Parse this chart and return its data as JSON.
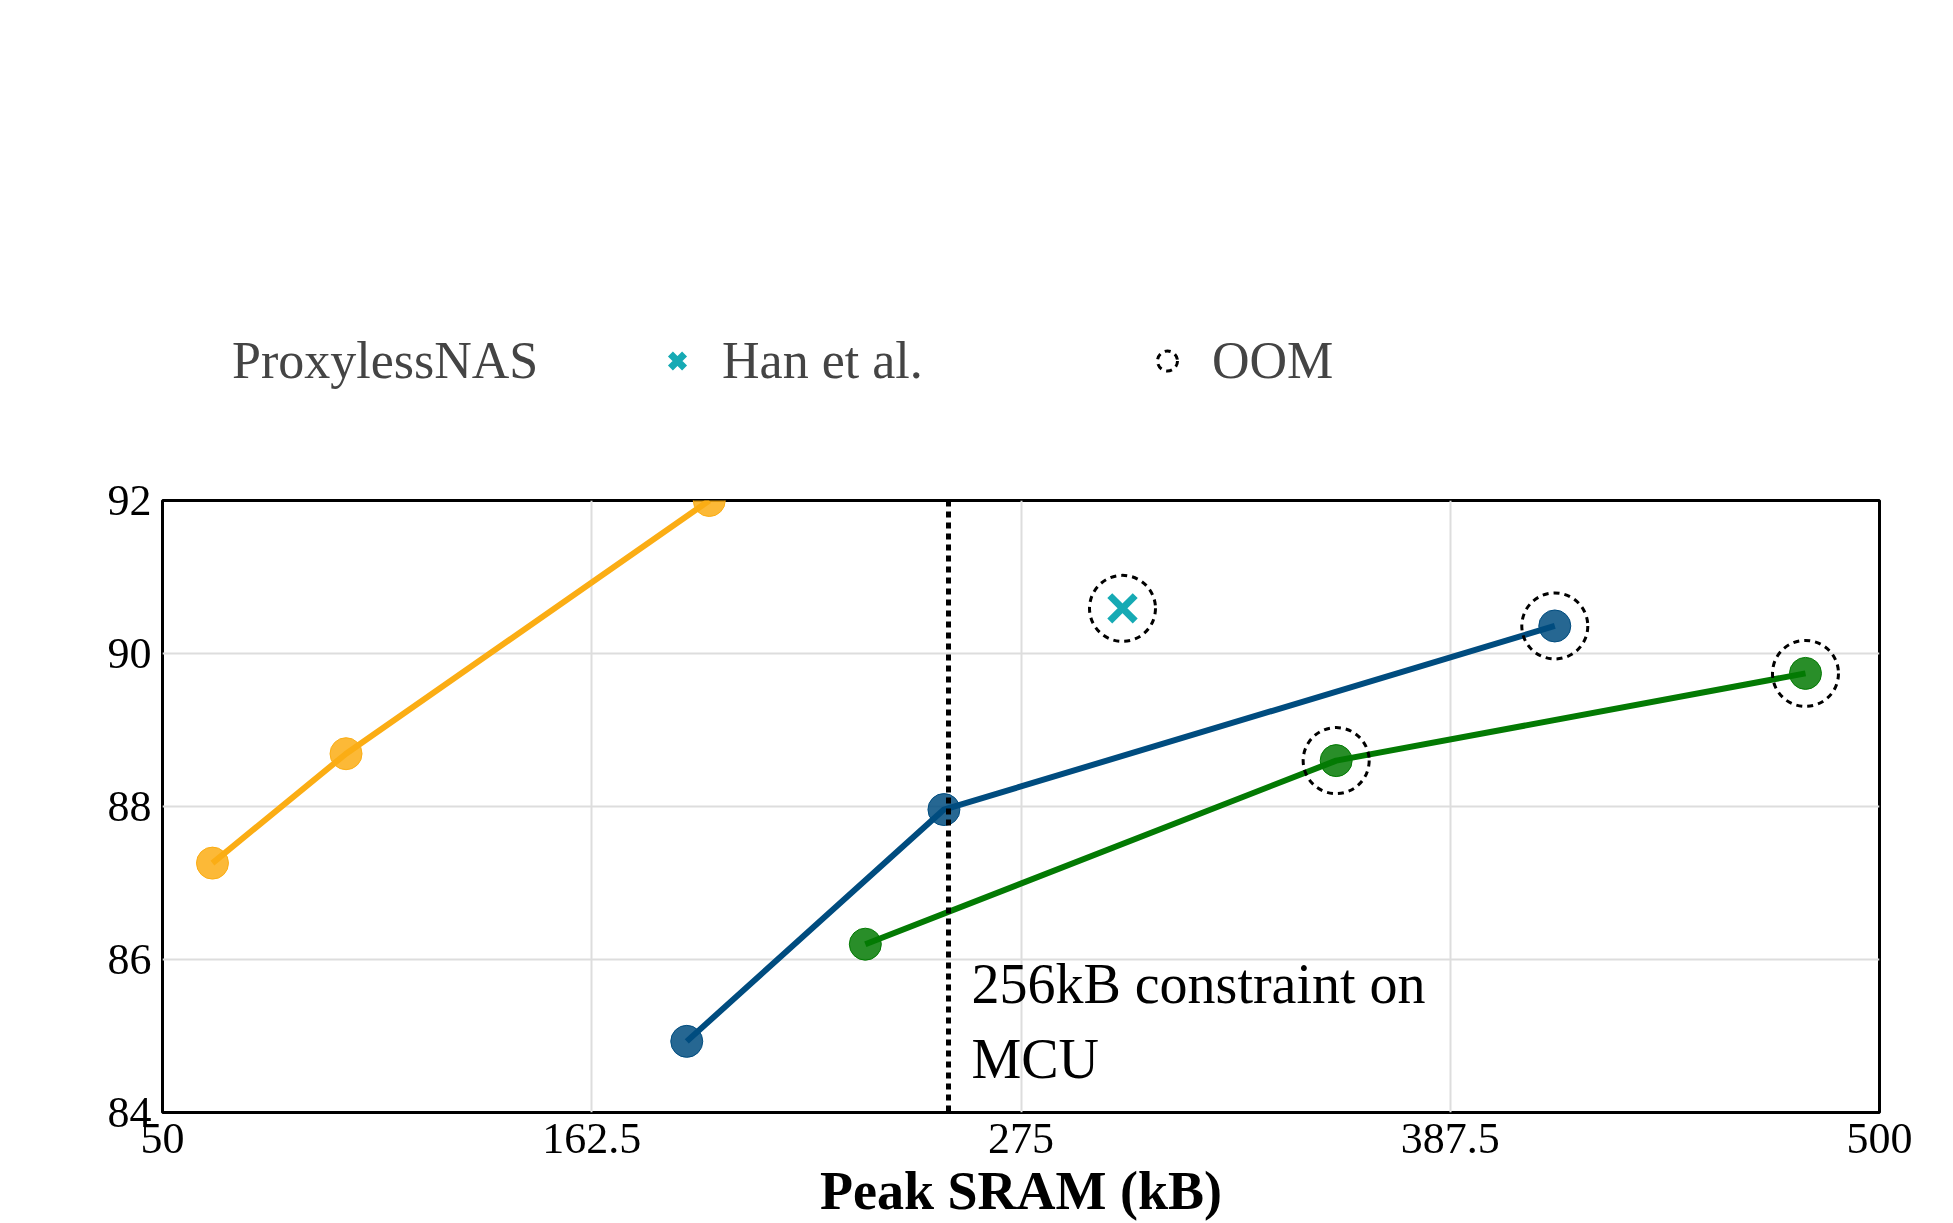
{
  "chart_data": {
    "type": "line",
    "xlabel": "Peak SRAM (kB)",
    "legend_title": "ProxylessNAS",
    "series": [
      {
        "color": "#fbad14",
        "x": [
          63.1,
          98.1,
          193.3
        ],
        "values": [
          87.26,
          88.69,
          92.0
        ]
      },
      {
        "color": "#004c7f",
        "x": [
          187.4,
          254.8,
          414.9
        ],
        "values": [
          84.93,
          87.96,
          90.36
        ]
      },
      {
        "color": "#037a03",
        "x": [
          234.2,
          357.6,
          480.6
        ],
        "values": [
          86.2,
          88.6,
          89.74
        ]
      },
      {
        "name": "Han et al.",
        "type": "scatter",
        "marker": "cross",
        "color": "#16aab4",
        "x": [
          301.6
        ],
        "values": [
          90.59
        ]
      },
      {
        "name": "OOM",
        "type": "scatter",
        "marker": "circle",
        "line_style": "dashed",
        "color": "#000000",
        "x": [
          301.6,
          414.9,
          357.6,
          480.6
        ],
        "values": [
          90.59,
          90.36,
          88.6,
          89.74
        ]
      }
    ],
    "marker": "circle",
    "line_style": "solid",
    "xlim": [
      50,
      500
    ],
    "xticks": [
      50,
      162.5,
      275,
      387.5,
      500
    ],
    "ylim": [
      84,
      92
    ],
    "yticks": [
      84,
      86,
      88,
      90,
      92
    ],
    "ref_lines": [
      {
        "axis": "x",
        "value": 256,
        "label": "256kB constraint on\nMCU",
        "color": "#000000",
        "line_style": "dashed"
      }
    ],
    "grid": true,
    "legend": "top"
  }
}
